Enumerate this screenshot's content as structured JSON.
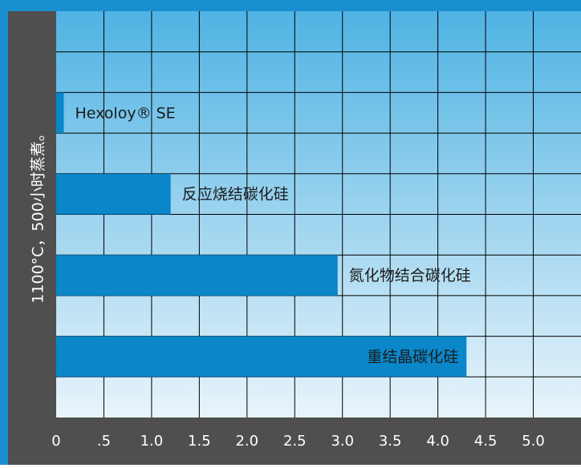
{
  "chart_data": {
    "type": "bar",
    "orientation": "horizontal",
    "ylabel": "1100°C，500小时蒸煮。",
    "categories": [
      "Hexoloy® SE",
      "反应烧结碳化硅",
      "氮化物结合碳化硅",
      "重结晶碳化硅"
    ],
    "values": [
      0.08,
      1.2,
      2.95,
      4.3
    ],
    "xlim": [
      0,
      5.5
    ],
    "xticks": [
      "0",
      ".5",
      "1.0",
      "1.5",
      "2.0",
      "2.5",
      "3.0",
      "3.5",
      "4.0",
      "4.5",
      "5.0"
    ],
    "grid": true
  },
  "colors": {
    "frame": "#1a8fd0",
    "axis_panel": "#4f4f4f",
    "bar": "#0a87c9",
    "grid": "#000000",
    "bg_top": "#4fb3e3",
    "bg_bottom": "#e9f4fb",
    "label_text": "#1b1b1b",
    "axis_text": "#ffffff"
  }
}
